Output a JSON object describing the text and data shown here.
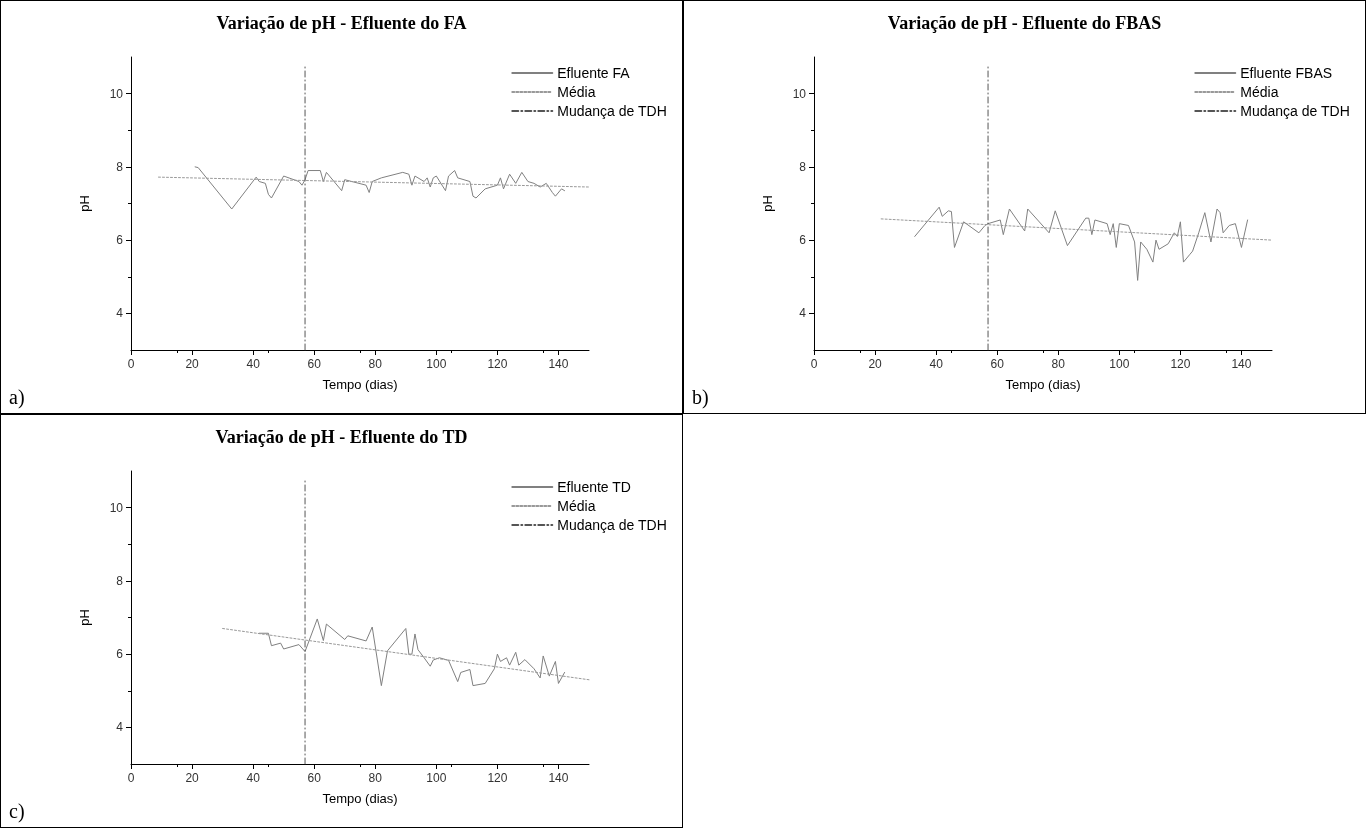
{
  "chart_data": [
    {
      "type": "line",
      "title": "Variação de pH - Efluente do FA",
      "xlabel": "Tempo (dias)",
      "ylabel": "pH",
      "annotations": [
        "a)"
      ],
      "xlim": [
        0,
        150
      ],
      "xticks": [
        0,
        20,
        40,
        60,
        80,
        100,
        120,
        140
      ],
      "ylim": [
        3,
        11
      ],
      "yticks": [
        4,
        6,
        8,
        10
      ],
      "grid": false,
      "legend": "top right",
      "marker": "none",
      "series": [
        {
          "name": "Efluente FA",
          "color": "#808080",
          "line_style": "solid",
          "x": [
            21,
            22,
            33,
            41,
            42,
            44,
            45,
            46,
            50,
            55,
            56,
            57,
            58,
            62,
            63,
            64,
            69,
            70,
            77,
            78,
            79,
            82,
            89,
            91,
            92,
            93,
            96,
            97,
            98,
            99,
            100,
            103,
            104,
            106,
            107,
            111,
            112,
            113,
            116,
            120,
            121,
            122,
            124,
            126,
            128,
            130,
            132,
            134,
            136,
            138,
            139,
            141,
            142
          ],
          "values": [
            8.0,
            7.98,
            6.85,
            7.72,
            7.6,
            7.55,
            7.25,
            7.15,
            7.75,
            7.6,
            7.5,
            7.65,
            7.9,
            7.9,
            7.6,
            7.85,
            7.35,
            7.65,
            7.5,
            7.3,
            7.6,
            7.7,
            7.85,
            7.8,
            7.5,
            7.75,
            7.6,
            7.7,
            7.45,
            7.7,
            7.75,
            7.35,
            7.75,
            7.9,
            7.7,
            7.6,
            7.2,
            7.15,
            7.4,
            7.5,
            7.7,
            7.4,
            7.8,
            7.55,
            7.85,
            7.6,
            7.55,
            7.45,
            7.55,
            7.3,
            7.2,
            7.4,
            7.35
          ]
        },
        {
          "name": "Média",
          "color": "#999999",
          "line_style": "dotted",
          "x": [
            9,
            150
          ],
          "values": [
            7.72,
            7.45
          ]
        },
        {
          "name": "Mudança de TDH",
          "color": "#555555",
          "line_style": "dashed",
          "x": [
            57,
            57
          ],
          "values": [
            3,
            10.8
          ]
        }
      ]
    },
    {
      "type": "line",
      "title": "Variação de pH - Efluente do FBAS",
      "xlabel": "Tempo (dias)",
      "ylabel": "pH",
      "annotations": [
        "b)"
      ],
      "xlim": [
        0,
        150
      ],
      "xticks": [
        0,
        20,
        40,
        60,
        80,
        100,
        120,
        140
      ],
      "ylim": [
        3,
        11
      ],
      "yticks": [
        4,
        6,
        8,
        10
      ],
      "grid": false,
      "legend": "top right",
      "marker": "none",
      "series": [
        {
          "name": "Efluente FBAS",
          "color": "#808080",
          "line_style": "solid",
          "x": [
            33,
            41,
            42,
            44,
            45,
            46,
            49,
            54,
            56,
            57,
            61,
            62,
            64,
            69,
            70,
            77,
            79,
            83,
            89,
            90,
            91,
            92,
            96,
            97,
            98,
            99,
            100,
            103,
            105,
            106,
            107,
            109,
            111,
            112,
            113,
            116,
            118,
            119,
            120,
            121,
            123,
            124,
            126,
            128,
            130,
            132,
            133,
            134,
            136,
            138,
            140,
            142
          ],
          "values": [
            6.1,
            6.9,
            6.65,
            6.8,
            6.78,
            5.8,
            6.5,
            6.2,
            6.4,
            6.45,
            6.55,
            6.15,
            6.85,
            6.25,
            6.85,
            6.2,
            6.8,
            5.85,
            6.6,
            6.6,
            6.15,
            6.55,
            6.45,
            6.15,
            6.45,
            5.8,
            6.45,
            6.4,
            5.95,
            4.9,
            5.95,
            5.75,
            5.4,
            6.0,
            5.75,
            5.9,
            6.2,
            6.1,
            6.5,
            5.4,
            5.6,
            5.7,
            6.2,
            6.75,
            5.95,
            6.85,
            6.75,
            6.2,
            6.4,
            6.45,
            5.8,
            6.55
          ]
        },
        {
          "name": "Média",
          "color": "#999999",
          "line_style": "dotted",
          "x": [
            22,
            150
          ],
          "values": [
            6.58,
            6.0
          ]
        },
        {
          "name": "Mudança de TDH",
          "color": "#555555",
          "line_style": "dashed",
          "x": [
            57,
            57
          ],
          "values": [
            3,
            10.8
          ]
        }
      ]
    },
    {
      "type": "line",
      "title": "Variação de pH - Efluente do TD",
      "xlabel": "Tempo (dias)",
      "ylabel": "pH",
      "annotations": [
        "c)"
      ],
      "xlim": [
        0,
        150
      ],
      "xticks": [
        0,
        20,
        40,
        60,
        80,
        100,
        120,
        140
      ],
      "ylim": [
        3,
        11
      ],
      "yticks": [
        4,
        6,
        8,
        10
      ],
      "grid": false,
      "legend": "top right",
      "marker": "none",
      "series": [
        {
          "name": "Efluente TD",
          "color": "#808080",
          "line_style": "solid",
          "x": [
            42,
            45,
            46,
            49,
            50,
            55,
            57,
            61,
            63,
            64,
            70,
            71,
            77,
            79,
            82,
            84,
            90,
            91,
            92,
            93,
            94,
            96,
            98,
            99,
            101,
            104,
            107,
            108,
            111,
            112,
            116,
            119,
            120,
            121,
            123,
            124,
            126,
            127,
            129,
            132,
            134,
            135,
            137,
            139,
            140,
            142
          ],
          "values": [
            6.57,
            6.57,
            6.23,
            6.3,
            6.14,
            6.26,
            6.07,
            6.96,
            6.37,
            6.82,
            6.4,
            6.5,
            6.36,
            6.74,
            5.14,
            6.09,
            6.7,
            6.0,
            6.0,
            6.55,
            6.12,
            5.9,
            5.67,
            5.84,
            5.9,
            5.83,
            5.25,
            5.5,
            5.58,
            5.14,
            5.2,
            5.6,
            6.0,
            5.8,
            5.9,
            5.7,
            6.05,
            5.7,
            5.85,
            5.6,
            5.35,
            5.95,
            5.4,
            5.8,
            5.2,
            5.5
          ]
        },
        {
          "name": "Média",
          "color": "#999999",
          "line_style": "dotted",
          "x": [
            30,
            150
          ],
          "values": [
            6.7,
            5.3
          ]
        },
        {
          "name": "Mudança de TDH",
          "color": "#555555",
          "line_style": "dashed",
          "x": [
            57,
            57
          ],
          "values": [
            3,
            10.8
          ]
        }
      ]
    }
  ]
}
